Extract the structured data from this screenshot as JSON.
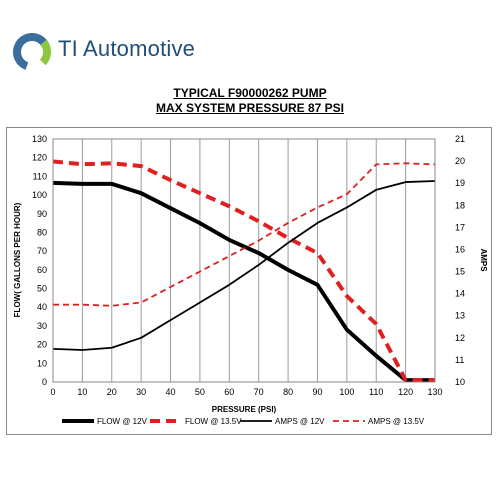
{
  "brand": {
    "name": "TI Automotive",
    "logo_icon": "ti-ring-logo-icon",
    "logo_colors": [
      "#3b6e9e",
      "#8dc63f",
      "#1f4e79"
    ]
  },
  "chart_data": {
    "type": "line",
    "title": "TYPICAL F90000262 PUMP",
    "subtitle": "MAX SYSTEM PRESSURE 87 PSI",
    "xlabel": "PRESSURE (PSI)",
    "ylabel": "FLOW( GALLONS PER HOUR)",
    "y2label": "AMPS",
    "xlim": [
      0,
      130
    ],
    "ylim": [
      0,
      130
    ],
    "y2lim": [
      10,
      21
    ],
    "x_ticks": [
      0,
      10,
      20,
      30,
      40,
      50,
      60,
      70,
      80,
      90,
      100,
      110,
      120,
      130
    ],
    "y_ticks": [
      0,
      10,
      20,
      30,
      40,
      50,
      60,
      70,
      80,
      90,
      100,
      110,
      120,
      130
    ],
    "y2_ticks": [
      10,
      11,
      12,
      13,
      14,
      15,
      16,
      17,
      18,
      19,
      20,
      21
    ],
    "grid": "vertical",
    "legend": "bottom",
    "x": [
      0,
      10,
      20,
      30,
      40,
      50,
      60,
      70,
      80,
      90,
      100,
      110,
      120,
      130
    ],
    "series": [
      {
        "name": "FLOW @ 12V",
        "axis": "left",
        "color": "#000000",
        "style": "thick-solid",
        "values": [
          106.5,
          106,
          106,
          101,
          93,
          85,
          76,
          69,
          60,
          52,
          28,
          14,
          1,
          1
        ]
      },
      {
        "name": "FLOW @ 13.5V",
        "axis": "left",
        "color": "#e02020",
        "style": "thick-dashed",
        "values": [
          118,
          116.5,
          117,
          115.5,
          108,
          101,
          94,
          86,
          77,
          69,
          46,
          31,
          1,
          1
        ]
      },
      {
        "name": "AMPS @ 12V",
        "axis": "right",
        "color": "#000000",
        "style": "thin-solid",
        "values": [
          11.5,
          11.45,
          11.55,
          12,
          12.8,
          13.6,
          14.4,
          15.3,
          16.3,
          17.2,
          17.9,
          18.7,
          19.05,
          19.1
        ]
      },
      {
        "name": "AMPS @ 13.5V",
        "axis": "right",
        "color": "#e02020",
        "style": "thin-dashed",
        "values": [
          13.5,
          13.5,
          13.45,
          13.6,
          14.3,
          15,
          15.7,
          16.4,
          17.2,
          17.9,
          18.5,
          19.85,
          19.9,
          19.85
        ]
      }
    ]
  }
}
